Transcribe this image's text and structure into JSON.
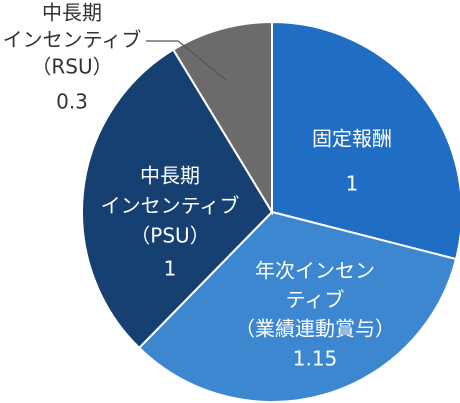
{
  "chart_data": {
    "type": "pie",
    "categories": [
      [
        "固定報酬"
      ],
      [
        "年次インセン",
        "ティブ",
        "（業績連動賞与）"
      ],
      [
        "中長期",
        "インセンティブ",
        "（PSU）"
      ],
      [
        "中長期",
        "インセンティブ",
        "（RSU）"
      ]
    ],
    "values": [
      1,
      1.15,
      1,
      0.3
    ],
    "colors": [
      "#1f6ec4",
      "#3d87d0",
      "#163f72",
      "#6b6b6b"
    ]
  }
}
